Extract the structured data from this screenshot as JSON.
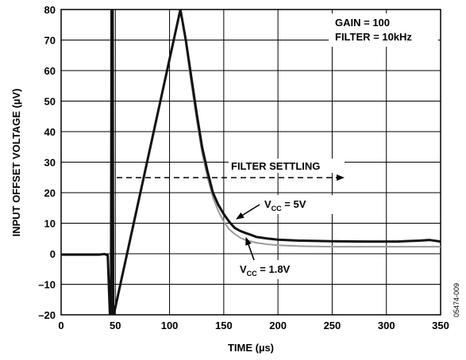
{
  "chart_data": {
    "type": "line",
    "xlabel": "TIME (µs)",
    "ylabel": "INPUT OFFSET VOLTAGE (µV)",
    "xlim": [
      0,
      350
    ],
    "ylim": [
      -20,
      80
    ],
    "x_ticks": [
      0,
      50,
      100,
      150,
      200,
      250,
      300,
      350
    ],
    "y_ticks": [
      -20,
      -10,
      0,
      10,
      20,
      30,
      40,
      50,
      60,
      70,
      80
    ],
    "grid": true,
    "series": [
      {
        "name": "VCC = 5V",
        "color": "#111111",
        "points": [
          [
            0,
            -0.3
          ],
          [
            35,
            -0.3
          ],
          [
            40,
            -0.1
          ],
          [
            43,
            -0.5
          ],
          [
            45,
            -20
          ],
          [
            46,
            -20
          ],
          [
            46.5,
            80
          ],
          [
            47.5,
            80
          ],
          [
            48,
            -20
          ],
          [
            48.5,
            -20
          ],
          [
            110,
            80
          ],
          [
            115,
            70
          ],
          [
            120,
            58
          ],
          [
            125,
            46
          ],
          [
            130,
            35
          ],
          [
            135,
            27
          ],
          [
            140,
            20
          ],
          [
            145,
            16
          ],
          [
            150,
            13
          ],
          [
            155,
            10.5
          ],
          [
            160,
            8.5
          ],
          [
            165,
            7.5
          ],
          [
            170,
            6.8
          ],
          [
            175,
            6.2
          ],
          [
            180,
            5.5
          ],
          [
            190,
            5.0
          ],
          [
            200,
            4.6
          ],
          [
            220,
            4.3
          ],
          [
            250,
            4.1
          ],
          [
            280,
            4.0
          ],
          [
            310,
            4.0
          ],
          [
            330,
            4.3
          ],
          [
            340,
            4.5
          ],
          [
            350,
            4.0
          ]
        ]
      },
      {
        "name": "VCC = 1.8V",
        "color": "#999999",
        "points": [
          [
            0,
            -0.3
          ],
          [
            35,
            -0.3
          ],
          [
            40,
            -0.1
          ],
          [
            43,
            -0.5
          ],
          [
            45,
            -20
          ],
          [
            46,
            -20
          ],
          [
            46.5,
            80
          ],
          [
            47.5,
            80
          ],
          [
            48,
            -20
          ],
          [
            48.5,
            -20
          ],
          [
            110,
            80
          ],
          [
            115,
            69
          ],
          [
            120,
            56
          ],
          [
            125,
            44
          ],
          [
            130,
            33
          ],
          [
            135,
            25
          ],
          [
            140,
            18.5
          ],
          [
            145,
            14
          ],
          [
            150,
            10.5
          ],
          [
            155,
            8
          ],
          [
            160,
            6.5
          ],
          [
            165,
            5.3
          ],
          [
            170,
            4.5
          ],
          [
            180,
            3.6
          ],
          [
            190,
            3.1
          ],
          [
            200,
            2.8
          ],
          [
            220,
            2.5
          ],
          [
            250,
            2.3
          ],
          [
            300,
            2.3
          ],
          [
            350,
            2.3
          ]
        ]
      }
    ],
    "annotations": {
      "gain": "GAIN = 100",
      "filter": "FILTER = 10kHz",
      "settling": "FILTER SETTLING",
      "vcc5_label_v": "V",
      "vcc5_label_sub": "CC",
      "vcc5_label_rest": " = 5V",
      "vcc18_label_v": "V",
      "vcc18_label_sub": "CC",
      "vcc18_label_rest": " = 1.8V"
    },
    "figure_id": "05474-009"
  }
}
